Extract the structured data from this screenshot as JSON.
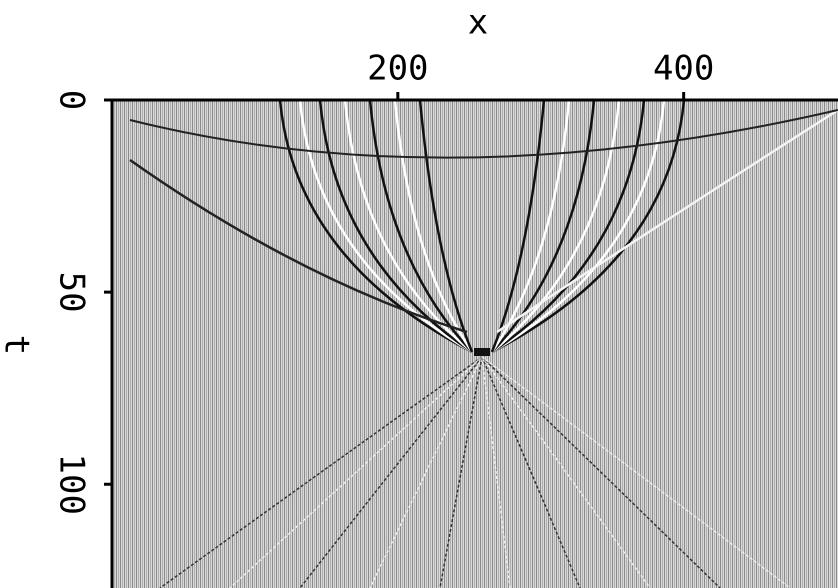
{
  "chart_data": {
    "type": "image",
    "xlabel": "x",
    "ylabel": "t",
    "xlim": [
      0,
      508
    ],
    "xticks": [
      200,
      400
    ],
    "ylim": [
      0,
      127
    ],
    "yticks": [
      0,
      50,
      100
    ],
    "xaxis_position": "top",
    "grid": false
  }
}
